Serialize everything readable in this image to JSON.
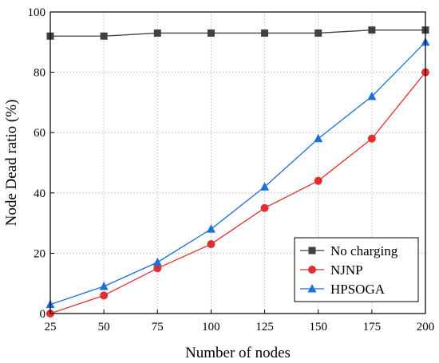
{
  "chart_data": {
    "type": "line",
    "xlabel": "Number of nodes",
    "ylabel": "Node Dead ratio (%)",
    "x": [
      25,
      50,
      75,
      100,
      125,
      150,
      175,
      200
    ],
    "xticks": [
      25,
      50,
      75,
      100,
      125,
      150,
      175,
      200
    ],
    "yticks": [
      0,
      20,
      40,
      60,
      80,
      100
    ],
    "xlim": [
      25,
      200
    ],
    "ylim": [
      0,
      100
    ],
    "grid": true,
    "legend_position": "bottom-right",
    "series": [
      {
        "name": "No charging",
        "values": [
          92,
          92,
          93,
          93,
          93,
          93,
          94,
          94
        ],
        "color": "#404040",
        "marker": "square"
      },
      {
        "name": "NJNP",
        "values": [
          0,
          6,
          15,
          23,
          35,
          44,
          58,
          80
        ],
        "color": "#e0302e",
        "marker": "circle"
      },
      {
        "name": "HPSOGA",
        "values": [
          3,
          9,
          17,
          28,
          42,
          58,
          72,
          90
        ],
        "color": "#1e6fd6",
        "marker": "triangle"
      }
    ]
  }
}
